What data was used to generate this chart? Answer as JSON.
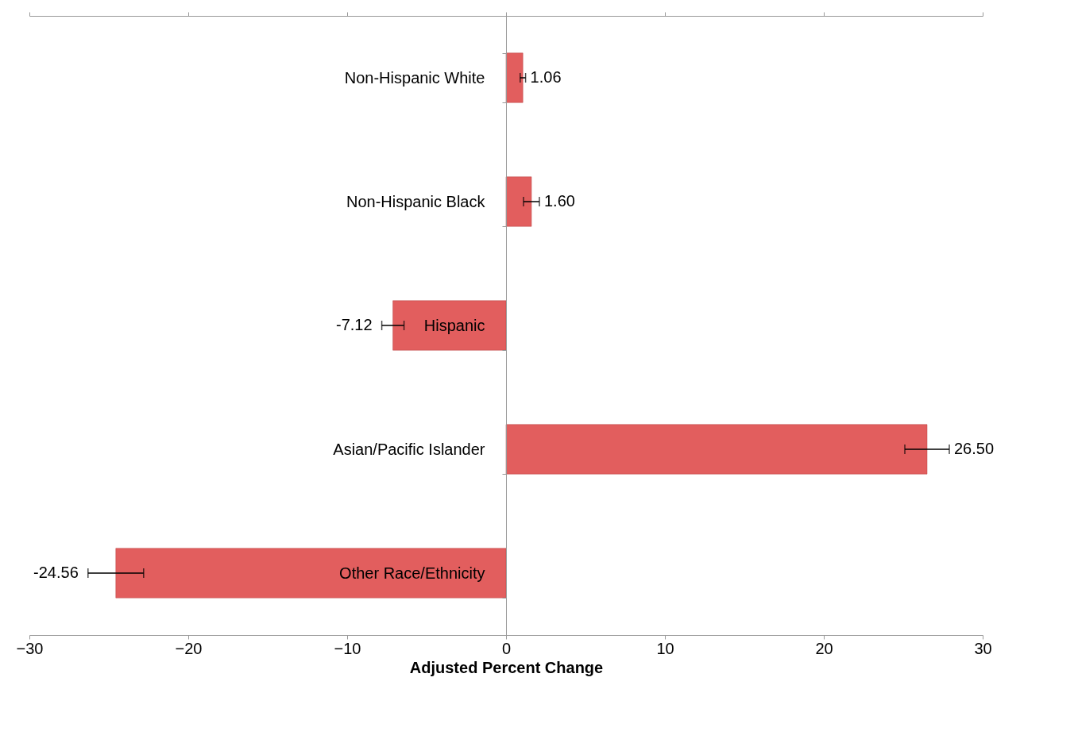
{
  "chart_data": {
    "type": "bar",
    "orientation": "horizontal",
    "xlabel": "Adjusted Percent Change",
    "categories": [
      "Non-Hispanic White",
      "Non-Hispanic Black",
      "Hispanic",
      "Asian/Pacific Islander",
      "Other Race/Ethnicity"
    ],
    "values": [
      1.06,
      1.6,
      -7.12,
      26.5,
      -24.56
    ],
    "errors": [
      0.17,
      0.5,
      0.7,
      1.4,
      1.75
    ],
    "value_labels": [
      "1.06",
      "1.60",
      "-7.12",
      "26.50",
      "-24.56"
    ],
    "color": "#e25e5e",
    "xlim": [
      -30,
      30
    ],
    "xticks": [
      -30,
      -20,
      -10,
      0,
      10,
      20,
      30
    ],
    "grid": false
  }
}
